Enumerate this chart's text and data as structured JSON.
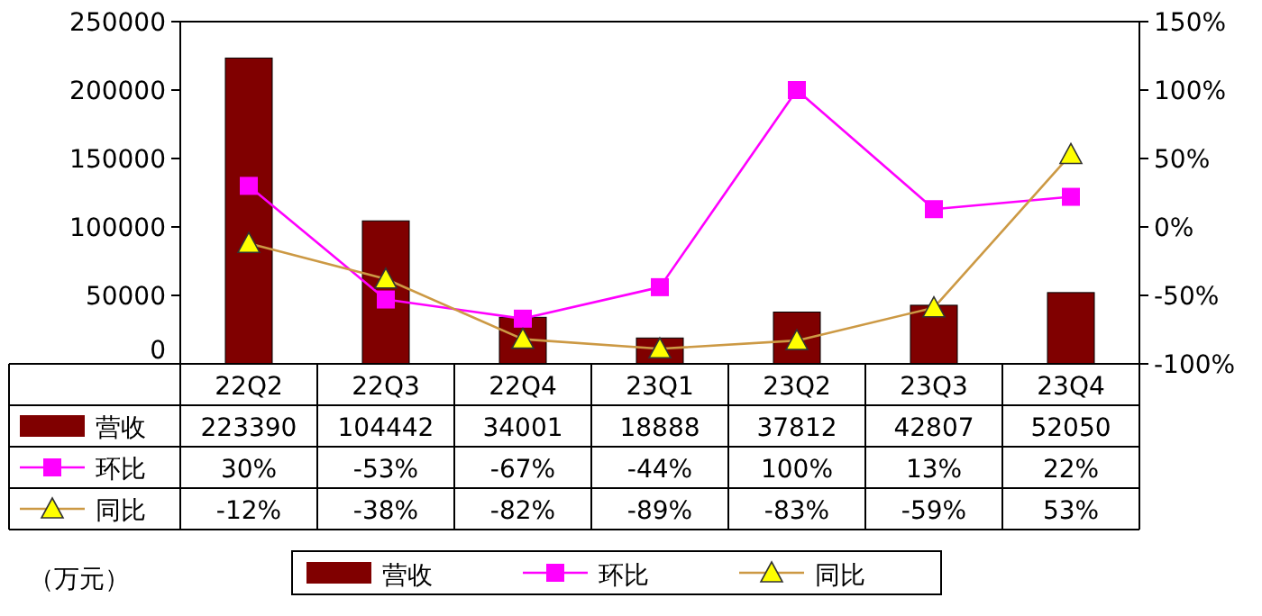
{
  "chart_data": {
    "type": "bar",
    "categories": [
      "22Q2",
      "22Q3",
      "22Q4",
      "23Q1",
      "23Q2",
      "23Q3",
      "23Q4"
    ],
    "series": [
      {
        "name": "营收",
        "color": "#800000",
        "values": [
          223390,
          104442,
          34001,
          18888,
          37812,
          42807,
          52050
        ],
        "value_labels": [
          "223390",
          "104442",
          "34001",
          "18888",
          "37812",
          "42807",
          "52050"
        ]
      },
      {
        "name": "环比",
        "type": "line",
        "axis": "y2",
        "color": "#ff00ff",
        "marker": "square",
        "values": [
          30,
          -53,
          -67,
          -44,
          100,
          13,
          22
        ],
        "value_labels": [
          "30%",
          "-53%",
          "-67%",
          "-44%",
          "100%",
          "13%",
          "22%"
        ]
      },
      {
        "name": "同比",
        "type": "line",
        "axis": "y2",
        "color": "#cc9944",
        "marker": "triangle",
        "values": [
          -12,
          -38,
          -82,
          -89,
          -83,
          -59,
          53
        ],
        "value_labels": [
          "-12%",
          "-38%",
          "-82%",
          "-89%",
          "-83%",
          "-59%",
          "53%"
        ]
      }
    ],
    "ylim": [
      0,
      250000
    ],
    "yticks": [
      0,
      50000,
      100000,
      150000,
      200000,
      250000
    ],
    "y2lim": [
      -100,
      150
    ],
    "y2ticks": [
      {
        "value": -100,
        "label": "-100%"
      },
      {
        "value": -50,
        "label": "-50%"
      },
      {
        "value": 0,
        "label": "0%"
      },
      {
        "value": 50,
        "label": "50%"
      },
      {
        "value": 100,
        "label": "100%"
      },
      {
        "value": 150,
        "label": "150%"
      }
    ],
    "data_labels": true,
    "legend": "bottom",
    "annotations": [
      "（万元）"
    ]
  }
}
